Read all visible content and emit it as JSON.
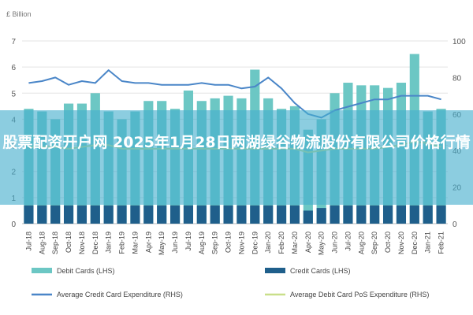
{
  "headline": "股票配资开户网 2025年1月28日两湖绿谷物流股份有限公司价格行情",
  "chart_data": {
    "type": "bar",
    "y_left_unit": "£ Billion",
    "y_left_range": [
      0,
      7
    ],
    "y_left_ticks": [
      "0",
      "1",
      "2",
      "3",
      "4",
      "5",
      "6",
      "7"
    ],
    "y_right_range": [
      0,
      100
    ],
    "y_right_ticks": [
      "0",
      "20",
      "40",
      "60",
      "80",
      "100"
    ],
    "categories": [
      "Jul-18",
      "Aug-18",
      "Sep-18",
      "Oct-18",
      "Nov-18",
      "Dec-18",
      "Jan-19",
      "Feb-19",
      "Mar-19",
      "Apr-19",
      "May-19",
      "Jun-19",
      "Jul-19",
      "Aug-19",
      "Sep-19",
      "Oct-19",
      "Nov-19",
      "Dec-19",
      "Jan-20",
      "Feb-20",
      "Mar-20",
      "Apr-20",
      "May-20",
      "Jun-20",
      "Jul-20",
      "Aug-20",
      "Sep-20",
      "Oct-20",
      "Nov-20",
      "Dec-20",
      "Jan-21",
      "Feb-21"
    ],
    "series": [
      {
        "name": "Debit Cards (LHS)",
        "kind": "bar",
        "axis": "left",
        "color": "#6cc7c4",
        "values": [
          4.4,
          4.3,
          4.0,
          4.6,
          4.6,
          5.0,
          4.3,
          4.0,
          4.3,
          4.7,
          4.7,
          4.4,
          5.1,
          4.7,
          4.8,
          4.9,
          4.8,
          5.9,
          4.8,
          4.4,
          4.5,
          3.6,
          4.0,
          5.0,
          5.4,
          5.3,
          5.3,
          5.2,
          5.4,
          6.5,
          4.3,
          4.4
        ]
      },
      {
        "name": "Credit Cards (LHS)",
        "kind": "bar",
        "axis": "left",
        "color": "#1f5f8b",
        "values": [
          0.7,
          0.7,
          0.7,
          0.7,
          0.7,
          0.7,
          0.7,
          0.7,
          0.7,
          0.7,
          0.7,
          0.7,
          0.7,
          0.7,
          0.7,
          0.7,
          0.7,
          0.7,
          0.7,
          0.7,
          0.7,
          0.5,
          0.6,
          0.7,
          0.7,
          0.7,
          0.7,
          0.7,
          0.7,
          0.7,
          0.7,
          0.7
        ]
      },
      {
        "name": "Average Credit Card Expenditure (RHS)",
        "kind": "line",
        "axis": "right",
        "color": "#4a86c8",
        "values": [
          77,
          78,
          80,
          76,
          78,
          77,
          84,
          78,
          77,
          77,
          76,
          76,
          76,
          77,
          76,
          76,
          74,
          75,
          80,
          74,
          66,
          60,
          58,
          62,
          64,
          66,
          68,
          68,
          70,
          70,
          70,
          68
        ]
      },
      {
        "name": "Average Debit Card PoS Expenditure (RHS)",
        "kind": "line",
        "axis": "right",
        "color": "#c9df8a",
        "values": [
          42,
          42,
          42,
          41,
          42,
          43,
          43,
          41,
          41,
          41,
          41,
          41,
          41,
          41,
          41,
          41,
          41,
          41,
          41,
          41,
          41,
          39,
          40,
          41,
          41,
          41,
          41,
          42,
          43,
          45,
          44,
          42
        ]
      }
    ],
    "legend_position": "bottom",
    "grid": true
  }
}
